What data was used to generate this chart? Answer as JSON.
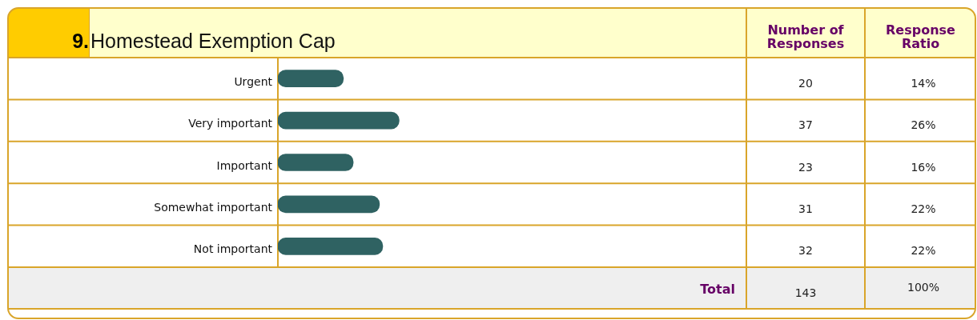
{
  "chart_data": {
    "type": "bar",
    "orientation": "horizontal",
    "title": "Homestead Exemption Cap",
    "categories": [
      "Urgent",
      "Very important",
      "Important",
      "Somewhat important",
      "Not important"
    ],
    "values": [
      20,
      37,
      23,
      31,
      32
    ],
    "color": "#2f6262",
    "data_labels": true,
    "xlim": [
      0,
      143
    ],
    "tick_labels": "y",
    "grid": "y",
    "annotations": [
      "9.",
      "Number of Responses",
      "Response Ratio",
      "Total",
      "143",
      "100%",
      "14%",
      "26%",
      "16%",
      "22%",
      "22%"
    ]
  }
}
